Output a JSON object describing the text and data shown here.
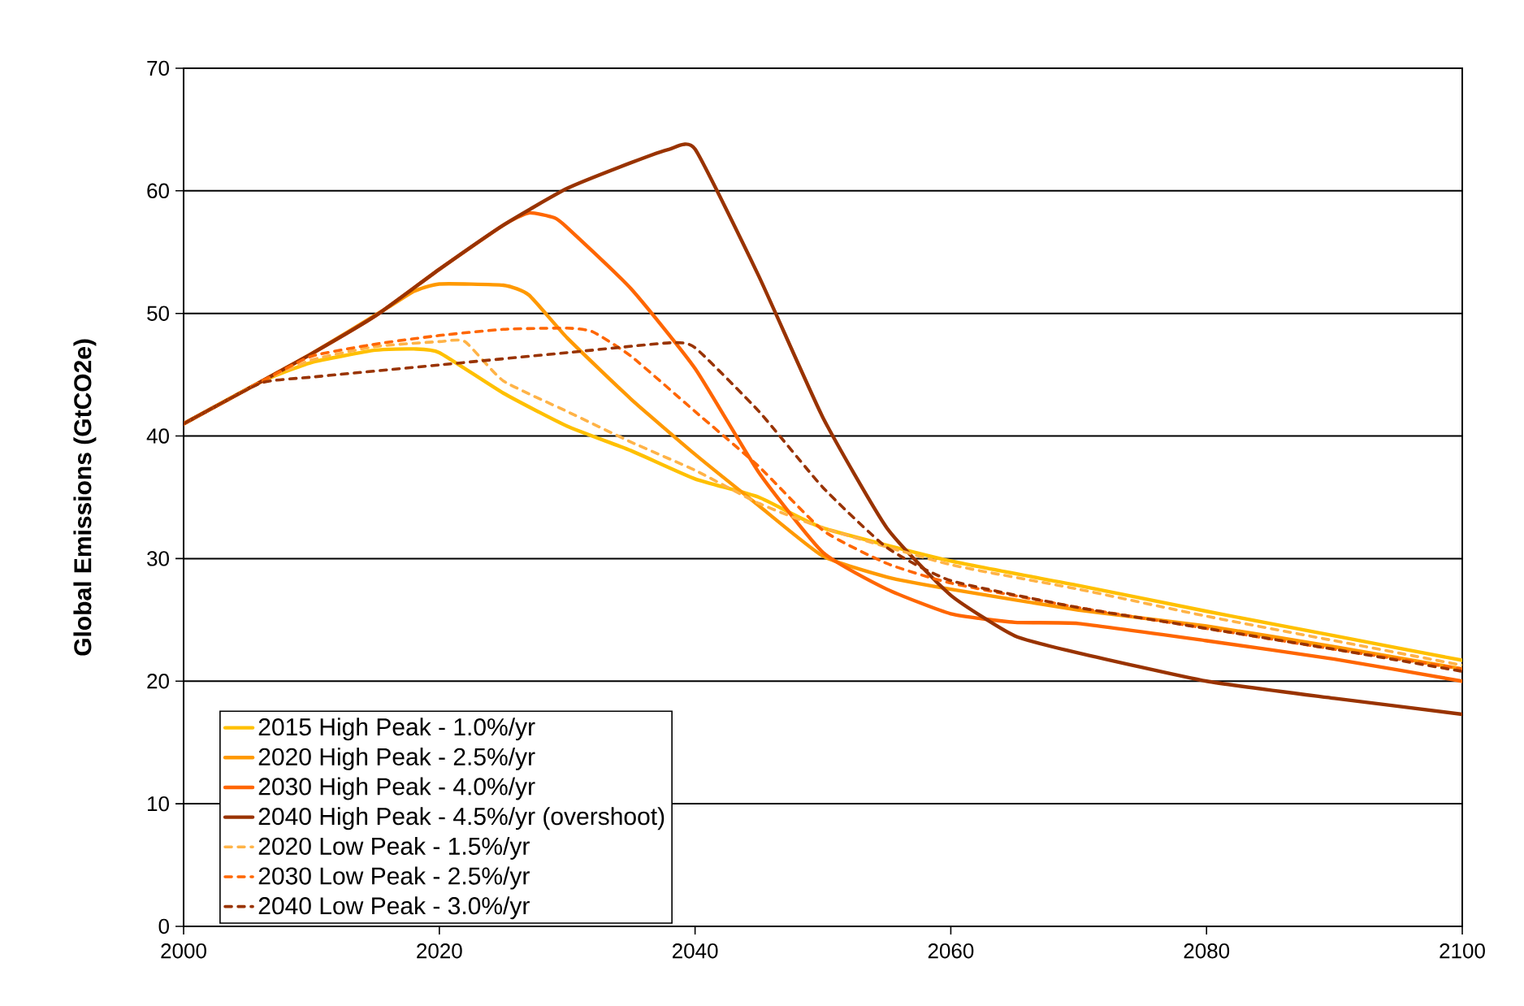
{
  "chart_data": {
    "type": "line",
    "ylabel": "Global Emissions (GtCO2e)",
    "xlim": [
      2000,
      2100
    ],
    "xticks": [
      2000,
      2020,
      2040,
      2060,
      2080,
      2100
    ],
    "ylim": [
      0,
      70
    ],
    "yticks": [
      0,
      10,
      20,
      30,
      40,
      50,
      60,
      70
    ],
    "grid": "y",
    "legend": "bottom left",
    "marker": "none",
    "series": [
      {
        "name": "2015 High Peak - 1.0%/yr",
        "color": "#ffc000",
        "line_style": "solid",
        "x": [
          2000,
          2006,
          2010,
          2015,
          2018,
          2020,
          2025,
          2030,
          2035,
          2040,
          2045,
          2050,
          2060,
          2070,
          2080,
          2090,
          2100
        ],
        "values": [
          41,
          44.4,
          46,
          47,
          47.1,
          46.8,
          43.5,
          40.8,
          38.8,
          36.5,
          35,
          32.5,
          29.8,
          27.8,
          25.7,
          23.7,
          21.7
        ]
      },
      {
        "name": "2020 High Peak - 2.5%/yr",
        "color": "#ff9900",
        "line_style": "solid",
        "x": [
          2000,
          2006,
          2010,
          2016,
          2018,
          2020,
          2025,
          2027,
          2030,
          2035,
          2040,
          2045,
          2050,
          2055,
          2060,
          2070,
          2080,
          2090,
          2100
        ],
        "values": [
          41,
          44.4,
          46.7,
          50.5,
          51.8,
          52.4,
          52.3,
          51.5,
          48,
          43,
          38.5,
          34.3,
          30.2,
          28.5,
          27.5,
          25.8,
          24.5,
          22.8,
          21.0
        ]
      },
      {
        "name": "2030 High Peak - 4.0%/yr",
        "color": "#ff6600",
        "line_style": "solid",
        "x": [
          2000,
          2006,
          2010,
          2015,
          2020,
          2025,
          2027,
          2029,
          2030,
          2035,
          2040,
          2045,
          2050,
          2055,
          2060,
          2065,
          2070,
          2080,
          2090,
          2100
        ],
        "values": [
          41,
          44.4,
          46.7,
          49.8,
          53.6,
          57.2,
          58.2,
          57.8,
          57,
          52,
          45.5,
          37,
          30.5,
          27.5,
          25.5,
          24.8,
          24.7,
          23.3,
          21.8,
          20.0
        ]
      },
      {
        "name": "2040 High Peak - 4.5%/yr (overshoot)",
        "color": "#993300",
        "line_style": "solid",
        "x": [
          2000,
          2006,
          2010,
          2015,
          2020,
          2025,
          2030,
          2035,
          2038,
          2040,
          2045,
          2050,
          2055,
          2060,
          2065,
          2070,
          2080,
          2090,
          2100
        ],
        "values": [
          41,
          44.4,
          46.7,
          49.8,
          53.6,
          57.2,
          60.2,
          62.3,
          63.4,
          63.4,
          53,
          41.5,
          32.5,
          27,
          23.7,
          22.3,
          20,
          18.6,
          17.3
        ]
      },
      {
        "name": "2020 Low Peak  - 1.5%/yr",
        "color": "#ffb347",
        "line_style": "dashed",
        "x": [
          2000,
          2006,
          2010,
          2015,
          2020,
          2022,
          2025,
          2030,
          2035,
          2040,
          2045,
          2050,
          2060,
          2070,
          2080,
          2090,
          2100
        ],
        "values": [
          41,
          44.4,
          46.2,
          47.3,
          47.7,
          47.7,
          44.5,
          42,
          39.5,
          37.2,
          34.5,
          32.5,
          29.5,
          27.5,
          25.3,
          23.3,
          21.3
        ]
      },
      {
        "name": "2030 Low Peak  - 2.5%/yr",
        "color": "#ff6600",
        "line_style": "dashed",
        "x": [
          2000,
          2006,
          2010,
          2015,
          2020,
          2025,
          2030,
          2032,
          2035,
          2040,
          2045,
          2050,
          2055,
          2060,
          2070,
          2080,
          2090,
          2100
        ],
        "values": [
          41,
          44.4,
          46.5,
          47.5,
          48.2,
          48.7,
          48.8,
          48.5,
          46.5,
          42,
          37.5,
          32.3,
          29.6,
          28,
          26,
          24.3,
          22.6,
          21.0
        ]
      },
      {
        "name": "2040 Low Peak  - 3.0%/yr",
        "color": "#993300",
        "line_style": "dashed",
        "x": [
          2000,
          2006,
          2010,
          2020,
          2030,
          2038,
          2040,
          2045,
          2050,
          2055,
          2060,
          2070,
          2080,
          2090,
          2100
        ],
        "values": [
          41,
          44.3,
          44.8,
          45.8,
          46.8,
          47.6,
          47.2,
          42,
          35.8,
          30.9,
          28.2,
          26,
          24.3,
          22.6,
          20.8
        ]
      }
    ]
  }
}
